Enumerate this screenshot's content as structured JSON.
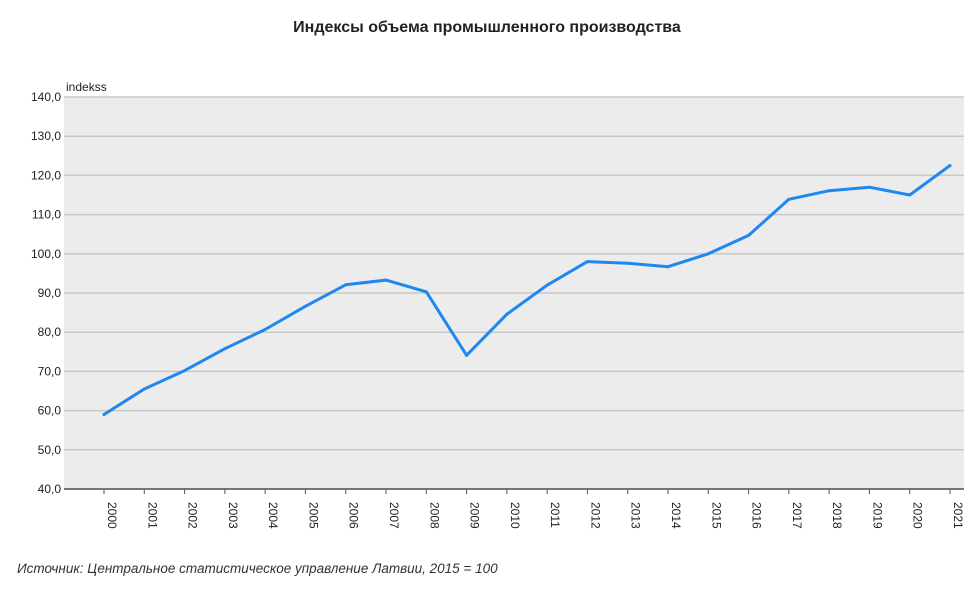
{
  "title": "Индексы объема промышленного производства",
  "source": "Источник: Центральное статистическое управление Латвии, 2015 = 100",
  "colors": {
    "line": "#1e88f0",
    "plot_bg": "#ececec",
    "grid": "#c8c8c8",
    "axis": "#555555"
  },
  "chart_data": {
    "type": "line",
    "title": "Индексы объема промышленного производства",
    "ylabel": "indekss",
    "xlabel": "",
    "categories": [
      "2000",
      "2001",
      "2002",
      "2003",
      "2004",
      "2005",
      "2006",
      "2007",
      "2008",
      "2009",
      "2010",
      "2011",
      "2012",
      "2013",
      "2014",
      "2015",
      "2016",
      "2017",
      "2018",
      "2019",
      "2020",
      "2021"
    ],
    "series": [
      {
        "values": [
          59.0,
          65.5,
          70.2,
          75.8,
          80.7,
          86.6,
          92.1,
          93.3,
          90.3,
          74.1,
          84.6,
          92.0,
          98.0,
          97.6,
          96.7,
          100.0,
          104.7,
          113.9,
          116.1,
          117.0,
          115.0,
          122.5
        ]
      }
    ],
    "ylim": [
      40,
      140
    ],
    "yticks": [
      "40,0",
      "50,0",
      "60,0",
      "70,0",
      "80,0",
      "90,0",
      "100,0",
      "110,0",
      "120,0",
      "130,0",
      "140,0"
    ],
    "grid": true,
    "legend": "none"
  }
}
